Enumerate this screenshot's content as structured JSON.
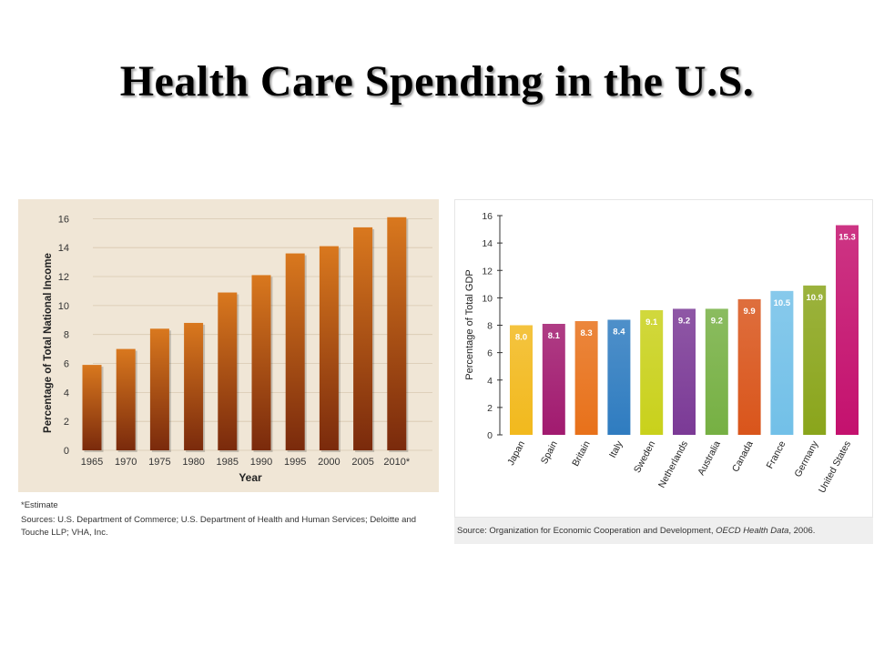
{
  "title": "Health Care Spending in the U.S.",
  "left_panel": {
    "estimate_note": "*Estimate",
    "sources": "Sources: U.S. Department of Commerce; U.S. Department of Health and Human Services; Deloitte and Touche LLP; VHA, Inc."
  },
  "right_panel": {
    "source_prefix": "Source: Organization for Economic Cooperation and Development, ",
    "source_title": "OECD Health Data",
    "source_suffix": ", 2006."
  },
  "colors": {
    "bar_top": "#d9781e",
    "bar_bottom": "#7a2a0c",
    "left_bg": "#f0e6d6",
    "country_colors": [
      "#f2b91d",
      "#a11a6f",
      "#e8711a",
      "#2f7cc0",
      "#c9d11b",
      "#7b3a96",
      "#76b043",
      "#d9551b",
      "#72c0e8",
      "#8aa51b",
      "#c4116e"
    ]
  },
  "chart_data": [
    {
      "type": "bar",
      "title": "",
      "xlabel": "Year",
      "ylabel": "Percentage of Total National Income",
      "categories": [
        "1965",
        "1970",
        "1975",
        "1980",
        "1985",
        "1990",
        "1995",
        "2000",
        "2005",
        "2010*"
      ],
      "values": [
        5.9,
        7.0,
        8.4,
        8.8,
        10.9,
        12.1,
        13.6,
        14.1,
        15.4,
        16.1
      ],
      "yticks": [
        0,
        2,
        4,
        6,
        8,
        10,
        12,
        14,
        16
      ],
      "ylim": [
        0,
        16.4
      ],
      "grid": true,
      "data_labels": false
    },
    {
      "type": "bar",
      "title": "",
      "xlabel": "",
      "ylabel": "Percentage of Total GDP",
      "categories": [
        "Japan",
        "Spain",
        "Britain",
        "Italy",
        "Sweden",
        "Netherlands",
        "Australia",
        "Canada",
        "France",
        "Germany",
        "United States"
      ],
      "values": [
        8.0,
        8.1,
        8.3,
        8.4,
        9.1,
        9.2,
        9.2,
        9.9,
        10.5,
        10.9,
        15.3
      ],
      "data_labels": [
        "8.0",
        "8.1",
        "8.3",
        "8.4",
        "9.1",
        "9.2",
        "9.2",
        "9.9",
        "10.5",
        "10.9",
        "15.3"
      ],
      "yticks": [
        0,
        2,
        4,
        6,
        8,
        10,
        12,
        14,
        16
      ],
      "ylim": [
        0,
        16
      ],
      "grid": false
    }
  ]
}
